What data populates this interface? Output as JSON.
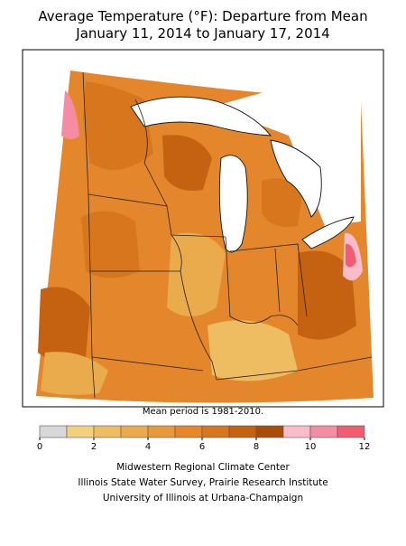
{
  "title": [
    "Average Temperature (°F): Departure from Mean",
    "January 11, 2014 to January 17, 2014"
  ],
  "note": "Mean period is 1981-2010.",
  "legend": {
    "bins": [
      0,
      1,
      2,
      3,
      4,
      5,
      6,
      7,
      8,
      9,
      10,
      11,
      12
    ],
    "colors": [
      "#d8d8d8",
      "#f2d07e",
      "#eebd62",
      "#eaab4c",
      "#e89a3a",
      "#e6872a",
      "#d8761e",
      "#c46212",
      "#a94e08",
      "#f8bccb",
      "#f48da3",
      "#f05c72"
    ],
    "ticks": [
      0,
      2,
      4,
      6,
      8,
      10,
      12
    ]
  },
  "credits": [
    "Midwestern Regional Climate Center",
    "Illinois State Water Survey, Prairie Research Institute",
    "University of Illinois at Urbana-Champaign"
  ]
}
